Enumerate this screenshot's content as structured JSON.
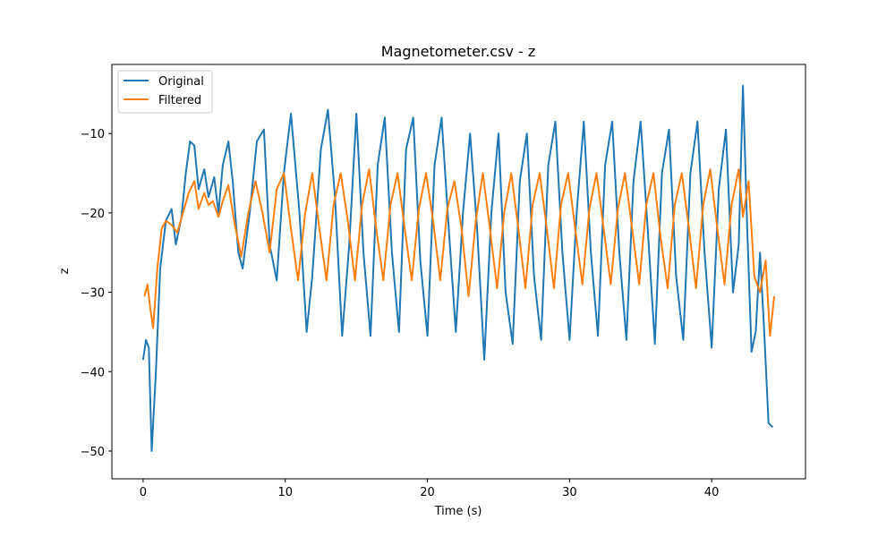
{
  "chart_data": {
    "type": "line",
    "title": "Magnetometer.csv - z",
    "xlabel": "Time (s)",
    "ylabel": "z",
    "xlim": [
      -2.2,
      46.6
    ],
    "ylim": [
      -53.5,
      -1.3
    ],
    "xticks": [
      0,
      10,
      20,
      30,
      40
    ],
    "xtick_labels": [
      "0",
      "10",
      "20",
      "30",
      "40"
    ],
    "yticks": [
      -50,
      -40,
      -30,
      -20,
      -10
    ],
    "ytick_labels": [
      "−50",
      "−40",
      "−30",
      "−20",
      "−10"
    ],
    "grid": false,
    "legend_position": "upper-left",
    "series": [
      {
        "name": "Original",
        "color": "#1f77b4",
        "x": [
          0.0,
          0.2,
          0.4,
          0.6,
          0.9,
          1.2,
          1.6,
          2.0,
          2.3,
          2.7,
          3.0,
          3.3,
          3.6,
          3.9,
          4.3,
          4.6,
          5.0,
          5.3,
          5.6,
          6.0,
          6.3,
          6.7,
          7.0,
          7.5,
          8.0,
          8.5,
          8.9,
          9.4,
          9.9,
          10.4,
          11.0,
          11.5,
          11.9,
          12.5,
          13.0,
          13.5,
          14.0,
          14.5,
          15.0,
          15.5,
          16.0,
          16.5,
          17.0,
          17.5,
          18.0,
          18.5,
          19.0,
          19.5,
          20.0,
          20.5,
          21.0,
          21.5,
          22.0,
          22.5,
          23.0,
          23.5,
          24.0,
          24.5,
          25.0,
          25.5,
          26.0,
          26.5,
          27.0,
          27.5,
          28.0,
          28.5,
          29.0,
          29.5,
          30.0,
          30.5,
          31.0,
          31.5,
          32.0,
          32.5,
          33.0,
          33.5,
          34.0,
          34.5,
          35.0,
          35.5,
          36.0,
          36.5,
          37.0,
          37.5,
          38.0,
          38.5,
          39.0,
          39.5,
          40.0,
          40.5,
          41.0,
          41.5,
          41.9,
          42.2,
          42.5,
          42.8,
          43.1,
          43.4,
          43.7,
          44.0,
          44.3
        ],
        "y": [
          -38.5,
          -36.0,
          -37.0,
          -50.0,
          -40.0,
          -27.0,
          -21.0,
          -19.5,
          -24.0,
          -20.5,
          -15.0,
          -11.0,
          -11.5,
          -17.0,
          -14.5,
          -18.0,
          -15.5,
          -20.0,
          -14.0,
          -11.0,
          -16.0,
          -25.0,
          -27.0,
          -20.0,
          -11.0,
          -9.5,
          -24.0,
          -28.5,
          -15.0,
          -7.5,
          -20.0,
          -35.0,
          -28.0,
          -12.0,
          -7.0,
          -18.0,
          -35.5,
          -24.0,
          -7.5,
          -25.0,
          -35.5,
          -14.0,
          -8.0,
          -25.0,
          -35.0,
          -12.0,
          -8.0,
          -26.0,
          -35.5,
          -14.0,
          -8.0,
          -22.0,
          -35.0,
          -20.0,
          -10.0,
          -22.0,
          -38.5,
          -20.0,
          -10.0,
          -30.0,
          -36.5,
          -16.0,
          -10.0,
          -28.0,
          -36.0,
          -14.0,
          -8.5,
          -25.0,
          -36.0,
          -20.0,
          -8.5,
          -25.0,
          -35.5,
          -14.0,
          -8.5,
          -25.0,
          -36.0,
          -16.0,
          -8.5,
          -22.0,
          -36.5,
          -15.0,
          -9.5,
          -28.0,
          -36.0,
          -15.0,
          -8.5,
          -25.0,
          -37.0,
          -17.0,
          -9.5,
          -30.0,
          -24.0,
          -4.0,
          -22.0,
          -37.5,
          -35.0,
          -25.0,
          -35.0,
          -46.5,
          -47.0
        ]
      },
      {
        "name": "Filtered",
        "color": "#ff7f0e",
        "x": [
          0.1,
          0.3,
          0.5,
          0.7,
          1.0,
          1.3,
          1.6,
          2.0,
          2.4,
          2.8,
          3.2,
          3.6,
          3.9,
          4.3,
          4.6,
          4.9,
          5.3,
          5.6,
          6.0,
          6.4,
          6.9,
          7.4,
          7.9,
          8.4,
          8.9,
          9.4,
          9.9,
          10.4,
          10.9,
          11.4,
          11.9,
          12.4,
          12.9,
          13.4,
          13.9,
          14.4,
          14.9,
          15.4,
          15.9,
          16.4,
          16.9,
          17.4,
          17.9,
          18.4,
          18.9,
          19.4,
          19.9,
          20.4,
          20.9,
          21.4,
          21.9,
          22.4,
          22.9,
          23.4,
          23.9,
          24.4,
          24.9,
          25.4,
          25.9,
          26.4,
          26.9,
          27.4,
          27.9,
          28.4,
          28.9,
          29.4,
          29.9,
          30.4,
          30.9,
          31.4,
          31.9,
          32.4,
          32.9,
          33.4,
          33.9,
          34.4,
          34.9,
          35.4,
          35.9,
          36.4,
          36.9,
          37.4,
          37.9,
          38.4,
          38.9,
          39.4,
          39.9,
          40.4,
          40.9,
          41.4,
          41.9,
          42.2,
          42.6,
          43.0,
          43.4,
          43.8,
          44.1,
          44.4
        ],
        "y": [
          -30.5,
          -29.0,
          -32.0,
          -34.5,
          -27.0,
          -22.0,
          -21.0,
          -21.5,
          -22.5,
          -20.0,
          -17.5,
          -16.0,
          -19.5,
          -17.5,
          -19.0,
          -18.5,
          -20.5,
          -18.5,
          -16.5,
          -21.0,
          -25.5,
          -20.0,
          -16.0,
          -20.0,
          -25.0,
          -17.0,
          -15.0,
          -22.0,
          -28.5,
          -20.0,
          -15.0,
          -22.0,
          -28.5,
          -19.0,
          -15.0,
          -21.0,
          -28.5,
          -19.0,
          -14.5,
          -22.0,
          -28.5,
          -19.0,
          -15.0,
          -22.0,
          -28.5,
          -19.5,
          -15.0,
          -21.0,
          -28.5,
          -19.5,
          -16.0,
          -22.0,
          -30.5,
          -21.0,
          -15.0,
          -22.0,
          -29.5,
          -20.0,
          -15.0,
          -22.0,
          -29.5,
          -19.0,
          -15.0,
          -22.0,
          -29.5,
          -19.0,
          -15.0,
          -22.0,
          -29.0,
          -19.5,
          -15.0,
          -22.0,
          -29.0,
          -19.5,
          -15.0,
          -22.0,
          -29.0,
          -19.0,
          -15.0,
          -23.0,
          -29.5,
          -19.0,
          -15.0,
          -22.0,
          -29.5,
          -19.0,
          -14.5,
          -22.0,
          -29.0,
          -19.0,
          -14.5,
          -20.5,
          -16.0,
          -28.0,
          -30.0,
          -26.0,
          -35.5,
          -30.5
        ]
      }
    ]
  }
}
